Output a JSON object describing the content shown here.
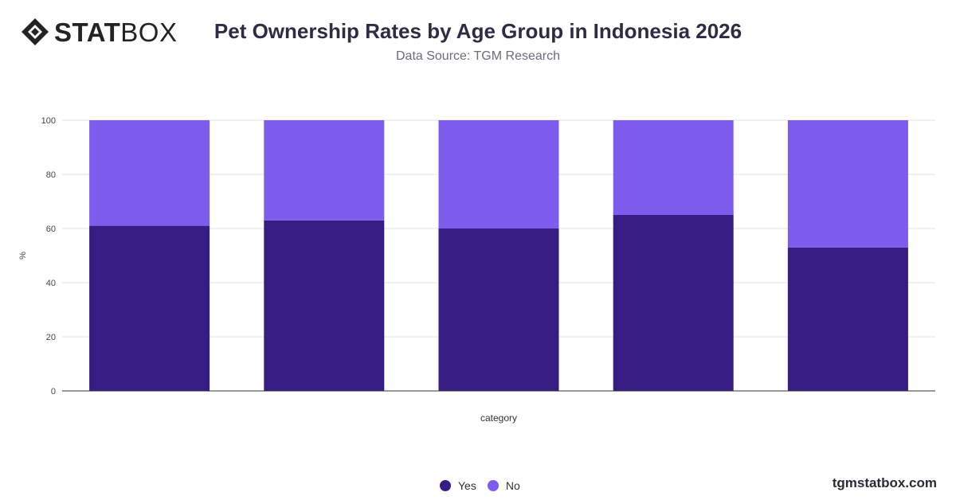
{
  "brand": {
    "logo_bold": "STAT",
    "logo_light": "BOX",
    "footer": "tgmstatbox.com"
  },
  "header": {
    "title": "Pet Ownership Rates by Age Group in Indonesia 2026",
    "subtitle": "Data Source: TGM Research"
  },
  "colors": {
    "yes": "#371d83",
    "no": "#7d5cee",
    "grid": "#e3e3e3",
    "axis": "#333333"
  },
  "chart_data": {
    "type": "bar",
    "stacked": true,
    "categories": [
      "",
      "",
      "",
      "",
      ""
    ],
    "series": [
      {
        "name": "Yes",
        "values": [
          61,
          63,
          60,
          65,
          53
        ]
      },
      {
        "name": "No",
        "values": [
          39,
          37,
          40,
          35,
          47
        ]
      }
    ],
    "xlabel": "category",
    "ylabel": "%",
    "ylim": [
      0,
      100
    ],
    "yticks": [
      0,
      20,
      40,
      60,
      80,
      100
    ],
    "grid": true,
    "legend": "bottom-center"
  }
}
